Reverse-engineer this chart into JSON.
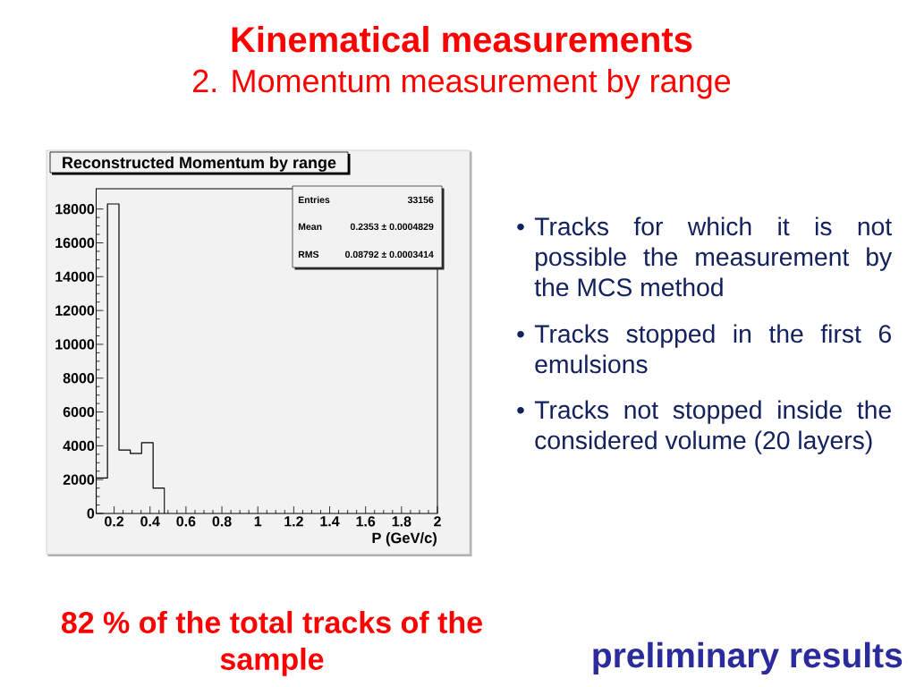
{
  "chart_data": {
    "type": "histogram",
    "title": "Kinematical measurements",
    "subtitle": "2. Momentum measurement by range",
    "xlabel": "P (GeV/c)",
    "bins": [
      0.1,
      0.163,
      0.227,
      0.29,
      0.353,
      0.417,
      0.48
    ],
    "values": [
      2100,
      18300,
      3750,
      3550,
      4180,
      1500
    ],
    "color": "#000000",
    "xlim": [
      0.1,
      2
    ],
    "xticks": [
      0.2,
      0.4,
      0.6,
      0.8,
      1,
      1.2,
      1.4,
      1.6,
      1.8,
      2
    ],
    "ylim": [
      0,
      19200
    ],
    "yticks": [
      0,
      2000,
      4000,
      6000,
      8000,
      10000,
      12000,
      14000,
      16000,
      18000
    ],
    "annotations": [
      "Reconstructed Momentum by range",
      "Entries",
      "33156",
      "Mean",
      "0.2353 ± 0.0004829",
      "RMS",
      "0.08792 ± 0.0003414",
      "•",
      "Tracks for which it is not possible the measurement by the MCS method",
      "•",
      "Tracks stopped in the first 6 emulsions",
      "•",
      "Tracks not stopped inside the considered volume (20 layers)",
      "82 % of the total tracks of the sample",
      "preliminary results"
    ]
  }
}
